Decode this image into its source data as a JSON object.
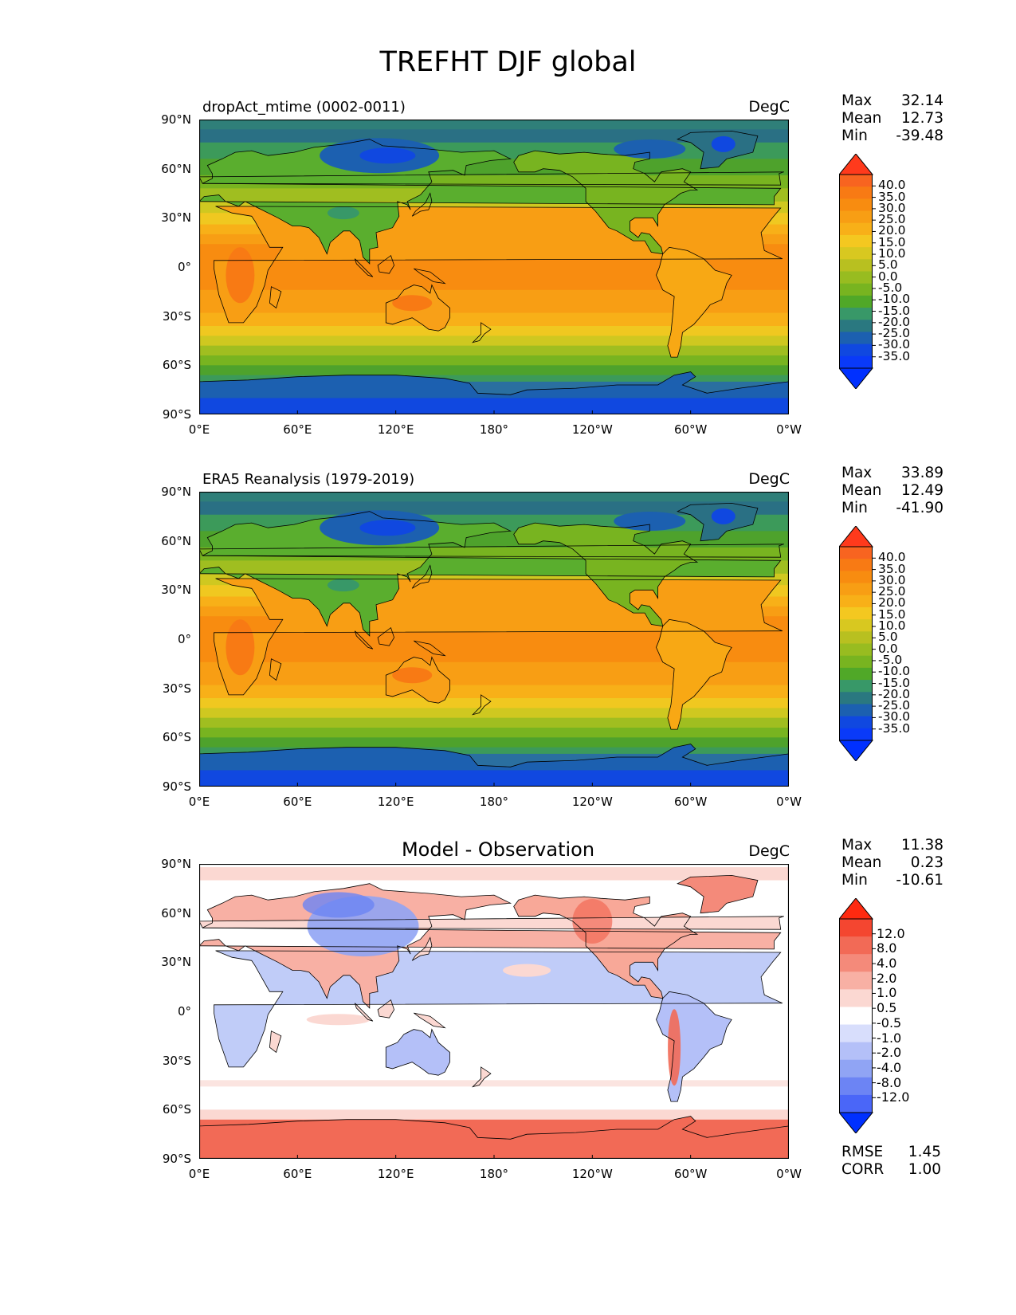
{
  "figure_title": "TREFHT DJF global",
  "axes": {
    "lat_ticks": [
      "90°N",
      "60°N",
      "30°N",
      "0°",
      "30°S",
      "60°S",
      "90°S"
    ],
    "lon_ticks": [
      "0°E",
      "60°E",
      "120°E",
      "180°",
      "120°W",
      "60°W",
      "0°W"
    ]
  },
  "panels": [
    {
      "title": "dropAct_mtime (0002-0011)",
      "units": "DegC",
      "stats": {
        "max_label": "Max",
        "max": "32.14",
        "mean_label": "Mean",
        "mean": "12.73",
        "min_label": "Min",
        "min": "-39.48"
      },
      "colorbar": {
        "labels": [
          "40.0",
          "35.0",
          "30.0",
          "25.0",
          "20.0",
          "15.0",
          "10.0",
          "5.0",
          "0.0",
          "-5.0",
          "-10.0",
          "-15.0",
          "-20.0",
          "-25.0",
          "-30.0",
          "-35.0"
        ],
        "colors": [
          "#ff3a1c",
          "#f86420",
          "#f87a14",
          "#f88c10",
          "#f89e14",
          "#f8b018",
          "#f4c820",
          "#d8c820",
          "#b8c020",
          "#98bc20",
          "#78b420",
          "#50a828",
          "#389868",
          "#2a7880",
          "#1c60b0",
          "#1048e0",
          "#0a3af8",
          "#0030ff"
        ]
      },
      "field": "model"
    },
    {
      "title": "ERA5 Reanalysis (1979-2019)",
      "units": "DegC",
      "stats": {
        "max_label": "Max",
        "max": "33.89",
        "mean_label": "Mean",
        "mean": "12.49",
        "min_label": "Min",
        "min": "-41.90"
      },
      "colorbar": {
        "labels": [
          "40.0",
          "35.0",
          "30.0",
          "25.0",
          "20.0",
          "15.0",
          "10.0",
          "5.0",
          "0.0",
          "-5.0",
          "-10.0",
          "-15.0",
          "-20.0",
          "-25.0",
          "-30.0",
          "-35.0"
        ],
        "colors": [
          "#ff3a1c",
          "#f86420",
          "#f87a14",
          "#f88c10",
          "#f89e14",
          "#f8b018",
          "#f4c820",
          "#d8c820",
          "#b8c020",
          "#98bc20",
          "#78b420",
          "#50a828",
          "#389868",
          "#2a7880",
          "#1c60b0",
          "#1048e0",
          "#0a3af8",
          "#0030ff"
        ]
      },
      "field": "obs"
    },
    {
      "title": "Model - Observation",
      "units": "DegC",
      "stats": {
        "max_label": "Max",
        "max": "11.38",
        "mean_label": "Mean",
        "mean": "0.23",
        "min_label": "Min",
        "min": "-10.61"
      },
      "colorbar": {
        "labels": [
          "12.0",
          "8.0",
          "4.0",
          "2.0",
          "1.0",
          "0.5",
          "-0.5",
          "-1.0",
          "-2.0",
          "-4.0",
          "-8.0",
          "-12.0"
        ],
        "colors": [
          "#ff2a10",
          "#f44630",
          "#f26a56",
          "#f48a7a",
          "#f8b0a4",
          "#fbd8d2",
          "#ffffff",
          "#d8defc",
          "#b4c0f8",
          "#90a4f4",
          "#6c84f4",
          "#4a66f8",
          "#0030ff"
        ]
      },
      "extra_stats": {
        "rmse_label": "RMSE",
        "rmse": "1.45",
        "corr_label": "CORR",
        "corr": "1.00"
      },
      "field": "diff"
    }
  ]
}
